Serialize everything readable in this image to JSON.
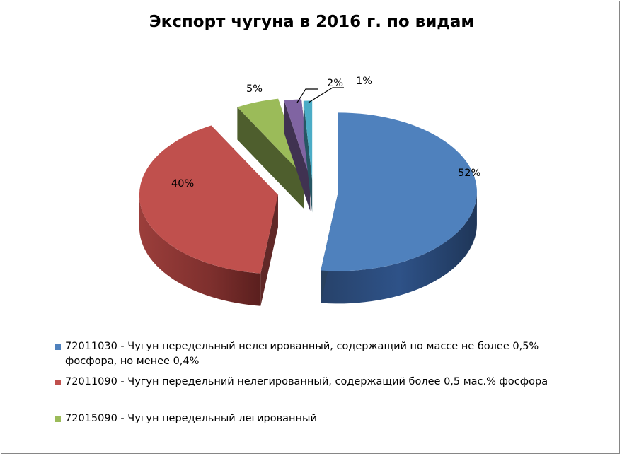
{
  "chart_data": {
    "type": "pie",
    "title": "Экспорт чугуна в 2016 г. по видам",
    "slices": [
      {
        "label": "72011030 - Чугун передельный нелегированный, содержащий по массе не более 0,5% фосфора, но менее 0,4%",
        "value": 52,
        "data_label": "52%",
        "color": "#4F81BD"
      },
      {
        "label": "72011090 - Чугун передельний нелегированный, содержащий  более 0,5 мас.% фосфора",
        "value": 40,
        "data_label": "40%",
        "color": "#C0504D"
      },
      {
        "label": "72015090 - Чугун передельный легированный",
        "value": 5,
        "data_label": "5%",
        "color": "#9BBB59"
      },
      {
        "label": "",
        "value": 2,
        "data_label": "2%",
        "color": "#8064A2"
      },
      {
        "label": "",
        "value": 1,
        "data_label": "1%",
        "color": "#4BACC6"
      }
    ],
    "legend_placement": "bottom",
    "style": "3d-exploded"
  }
}
